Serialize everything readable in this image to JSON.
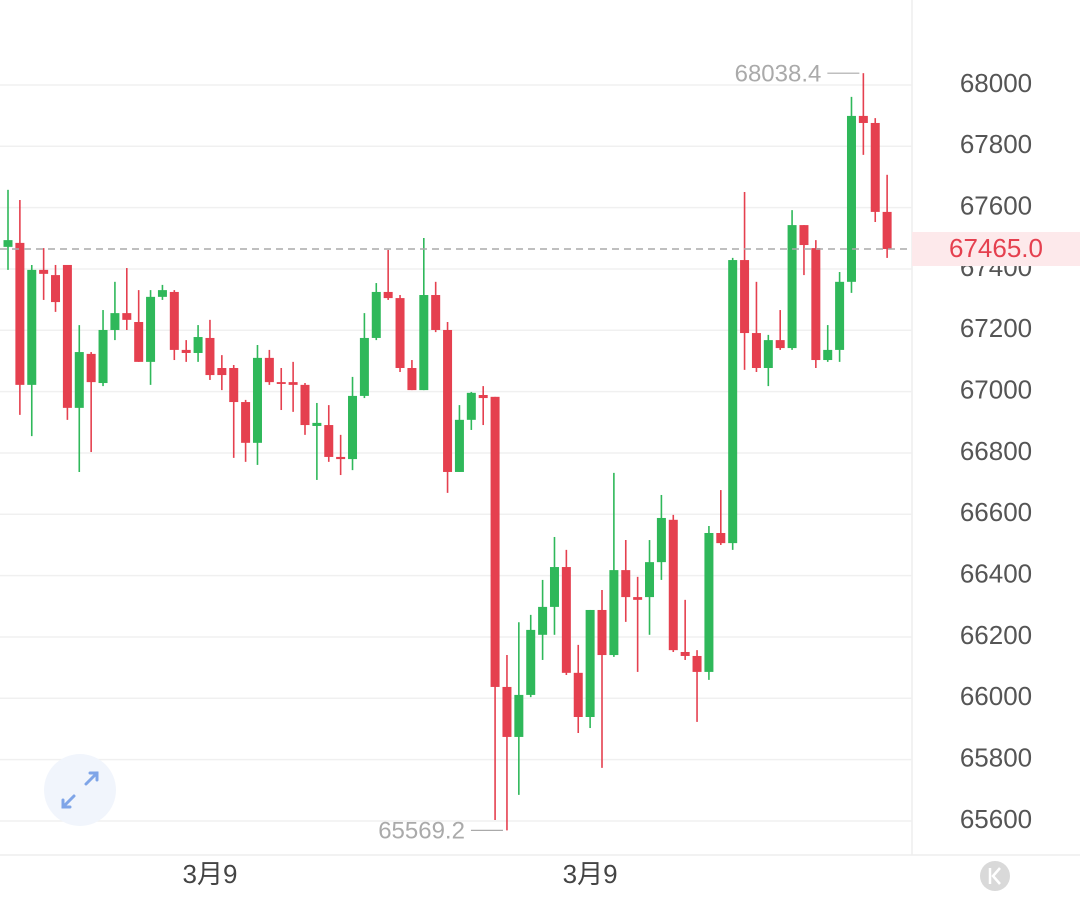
{
  "chart_data": {
    "type": "candlestick",
    "categories": [
      null,
      null,
      null,
      null,
      null,
      null,
      null,
      null,
      null,
      null,
      null,
      null,
      null,
      null,
      null,
      null,
      null,
      "3月9",
      null,
      null,
      null,
      null,
      null,
      null,
      null,
      null,
      null,
      null,
      null,
      null,
      null,
      null,
      null,
      null,
      null,
      null,
      null,
      null,
      null,
      null,
      null,
      null,
      null,
      null,
      null,
      null,
      null,
      null,
      null,
      "3月9",
      null,
      null,
      null,
      null,
      null,
      null,
      null,
      null,
      null,
      null,
      null,
      null,
      null,
      null,
      null,
      null,
      null,
      null,
      null,
      null,
      null,
      null,
      null,
      null,
      null
    ],
    "open": [
      67472,
      67485,
      67022,
      67397,
      67380,
      67413,
      66947,
      67123,
      67028,
      67201,
      67256,
      67227,
      67097,
      67309,
      67325,
      67136,
      67126,
      67175,
      67077,
      67077,
      66966,
      66833,
      67110,
      67031,
      67031,
      67022,
      66888,
      66891,
      66787,
      66780,
      66986,
      67175,
      67325,
      67305,
      67077,
      67005,
      67315,
      67201,
      66738,
      66908,
      66989,
      66983,
      66037,
      65874,
      66011,
      66207,
      66298,
      66428,
      66083,
      65939,
      66288,
      66141,
      66418,
      66330,
      66330,
      66444,
      66582,
      66151,
      66138,
      66086,
      66539,
      66506,
      67429,
      67191,
      67077,
      67168,
      67142,
      67543,
      67468,
      67103,
      67136,
      67358,
      67899,
      67876,
      67586
    ],
    "high": [
      67658,
      67625,
      67413,
      67468,
      67413,
      67413,
      67217,
      67129,
      67266,
      67358,
      67403,
      67331,
      67331,
      67348,
      67331,
      67168,
      67217,
      67234,
      67119,
      67087,
      66973,
      67152,
      67136,
      67077,
      67097,
      67028,
      66963,
      66956,
      66859,
      67048,
      67256,
      67354,
      67462,
      67315,
      67103,
      67501,
      67358,
      67227,
      66956,
      66999,
      67018,
      66983,
      66141,
      66248,
      66272,
      66386,
      66526,
      66484,
      66174,
      66288,
      66353,
      66735,
      66516,
      66396,
      66516,
      66663,
      66598,
      66321,
      66157,
      66562,
      66679,
      67436,
      67651,
      67358,
      67185,
      67266,
      67592,
      67543,
      67494,
      67217,
      67390,
      67961,
      68038.4,
      67892,
      67707
    ],
    "low": [
      67397,
      66924,
      66855,
      67299,
      67260,
      66908,
      66738,
      66803,
      67018,
      67168,
      67201,
      67097,
      67022,
      67299,
      67103,
      67097,
      67097,
      67038,
      67005,
      66784,
      66771,
      66761,
      67022,
      66940,
      66934,
      66859,
      66712,
      66771,
      66728,
      66744,
      66979,
      67168,
      67299,
      67064,
      67005,
      67005,
      67194,
      66670,
      66738,
      66875,
      66891,
      65603,
      65569.2,
      65685,
      66004,
      66125,
      66207,
      66076,
      65887,
      65903,
      65773,
      66135,
      66249,
      66086,
      66207,
      66386,
      66151,
      66125,
      65923,
      66060,
      66500,
      66484,
      67071,
      67064,
      67018,
      67136,
      67136,
      67380,
      67077,
      67097,
      67097,
      67322,
      67772,
      67553,
      67436
    ],
    "close": [
      67494,
      67022,
      67397,
      67384,
      67292,
      66947,
      67129,
      67031,
      67201,
      67256,
      67234,
      67097,
      67309,
      67331,
      67136,
      67126,
      67178,
      67054,
      67054,
      66966,
      66833,
      67110,
      67031,
      67025,
      67022,
      66891,
      66898,
      66787,
      66780,
      66986,
      67175,
      67325,
      67305,
      67077,
      67005,
      67315,
      67201,
      66738,
      66908,
      66996,
      66979,
      66037,
      65874,
      66011,
      66223,
      66298,
      66428,
      66083,
      65939,
      66288,
      66141,
      66418,
      66330,
      66321,
      66444,
      66588,
      66157,
      66138,
      66086,
      66539,
      66506,
      67429,
      67191,
      67077,
      67168,
      67142,
      67543,
      67478,
      67103,
      67136,
      67358,
      67899,
      67876,
      67586,
      67465
    ],
    "up_color": "#2fb85a",
    "down_color": "#e5404f",
    "ylim": [
      65489,
      68277
    ],
    "yticks": [
      65600,
      65800,
      66000,
      66200,
      66400,
      66600,
      66800,
      67000,
      67200,
      67400,
      67600,
      67800,
      68000
    ],
    "grid": true,
    "high_label": 68038.4,
    "low_label": 65569.2,
    "last_price": {
      "value": 67465,
      "label": "67465.0"
    }
  }
}
